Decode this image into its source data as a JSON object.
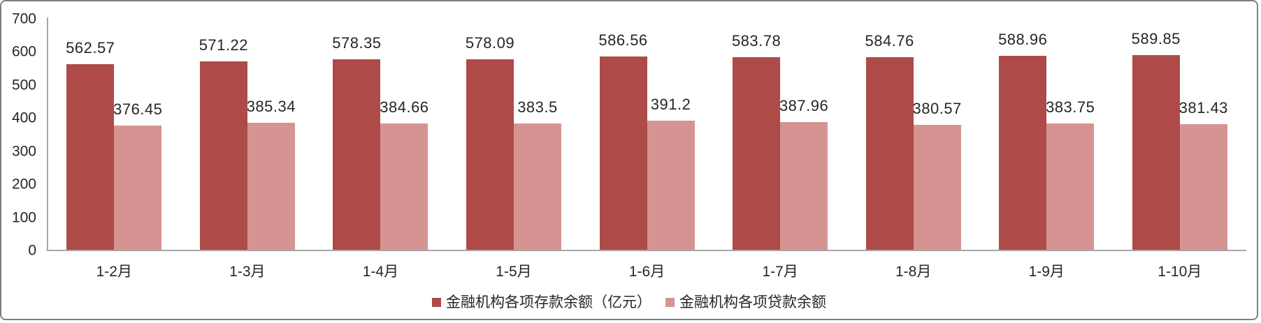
{
  "chart_data": {
    "type": "bar",
    "title": "",
    "categories": [
      "1-2月",
      "1-3月",
      "1-4月",
      "1-5月",
      "1-6月",
      "1-7月",
      "1-8月",
      "1-9月",
      "1-10月"
    ],
    "series": [
      {
        "name": "金融机构各项存款余额（亿元）",
        "color": "#ae4a47",
        "values": [
          562.57,
          571.22,
          578.35,
          578.09,
          586.56,
          583.78,
          584.76,
          588.96,
          589.85
        ]
      },
      {
        "name": "金融机构各项贷款余额",
        "color": "#d59492",
        "values": [
          376.45,
          385.34,
          384.66,
          383.5,
          391.2,
          387.96,
          380.57,
          383.75,
          381.43
        ]
      }
    ],
    "xlabel": "",
    "ylabel": "",
    "ylim": [
      0,
      700
    ],
    "yticks": [
      0,
      100,
      200,
      300,
      400,
      500,
      600,
      700
    ],
    "grid": false,
    "legend_position": "bottom",
    "data_labels": "outside-end",
    "axis_color": "#a6a6a6",
    "text_color": "#262626",
    "frame_border_color": "#7f7f7f"
  }
}
